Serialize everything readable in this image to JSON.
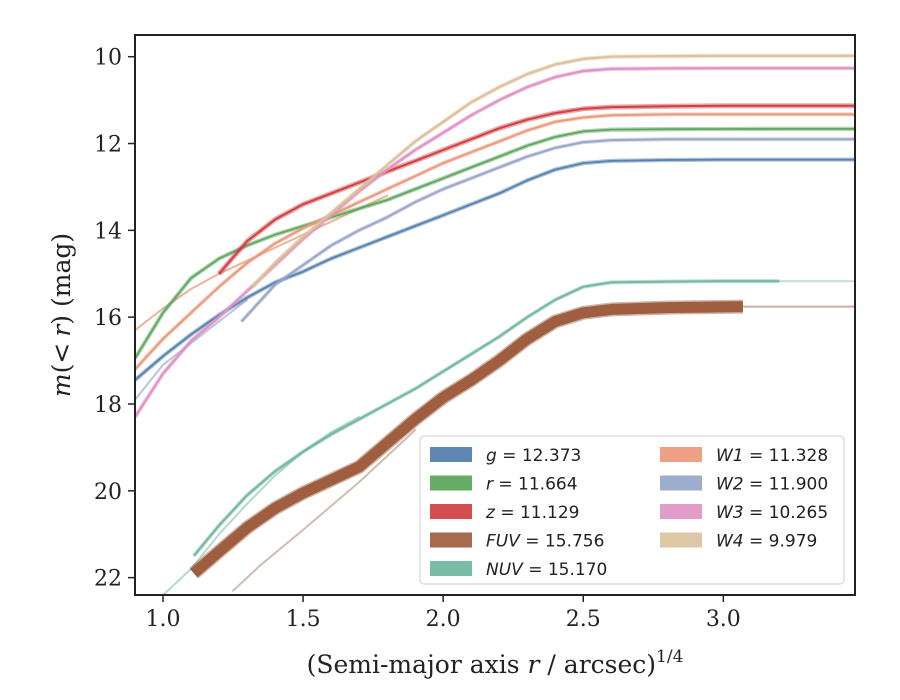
{
  "chart_data": {
    "type": "line",
    "title": "",
    "xlabel": "(Semi-major axis r / arcsec)",
    "xlabel_var": "r",
    "xlabel_exp": "1/4",
    "ylabel": "m(< r) (mag)",
    "ylabel_var_m": "m",
    "ylabel_var_r": "r",
    "xlim": [
      0.9,
      3.47
    ],
    "ylim": [
      22.4,
      9.5
    ],
    "xticks": [
      "1.0",
      "1.5",
      "2.0",
      "2.5",
      "3.0"
    ],
    "xtick_values": [
      1.0,
      1.5,
      2.0,
      2.5,
      3.0
    ],
    "yticks": [
      "10",
      "12",
      "14",
      "16",
      "18",
      "20",
      "22"
    ],
    "ytick_values": [
      10,
      12,
      14,
      16,
      18,
      20,
      22
    ],
    "grid": false,
    "y_inverted": true,
    "legend_position": "lower-right",
    "legend_columns": 2,
    "series": [
      {
        "name": "g",
        "label_value": "12.373",
        "color": "#4c7aab",
        "width": 1.8,
        "band": 2.5,
        "alpha": 0.9,
        "x": [
          0.9,
          1.0,
          1.1,
          1.2,
          1.3,
          1.4,
          1.5,
          1.6,
          1.7,
          1.8,
          1.9,
          2.0,
          2.1,
          2.2,
          2.3,
          2.4,
          2.5,
          2.6,
          2.8,
          3.0,
          3.2,
          3.47
        ],
        "y": [
          17.45,
          16.9,
          16.4,
          15.95,
          15.55,
          15.2,
          14.95,
          14.65,
          14.4,
          14.15,
          13.9,
          13.65,
          13.4,
          13.15,
          12.85,
          12.6,
          12.45,
          12.4,
          12.38,
          12.37,
          12.37,
          12.37
        ]
      },
      {
        "name": "r",
        "label_value": "11.664",
        "color": "#55a357",
        "width": 1.8,
        "band": 2.5,
        "alpha": 0.9,
        "x": [
          0.9,
          1.0,
          1.1,
          1.2,
          1.3,
          1.4,
          1.5,
          1.6,
          1.7,
          1.8,
          1.9,
          2.0,
          2.1,
          2.2,
          2.3,
          2.4,
          2.5,
          2.6,
          2.8,
          3.0,
          3.2,
          3.47
        ],
        "y": [
          16.95,
          15.9,
          15.1,
          14.65,
          14.35,
          14.1,
          13.9,
          13.7,
          13.5,
          13.3,
          13.05,
          12.8,
          12.55,
          12.3,
          12.05,
          11.85,
          11.72,
          11.68,
          11.67,
          11.665,
          11.664,
          11.664
        ]
      },
      {
        "name": "z",
        "label_value": "11.129",
        "color": "#d03a3c",
        "width": 2.0,
        "band": 3,
        "alpha": 0.95,
        "x": [
          1.2,
          1.3,
          1.4,
          1.5,
          1.6,
          1.7,
          1.8,
          1.9,
          2.0,
          2.1,
          2.2,
          2.3,
          2.4,
          2.5,
          2.6,
          2.8,
          3.0,
          3.2,
          3.47
        ],
        "y": [
          15.0,
          14.25,
          13.75,
          13.4,
          13.15,
          12.9,
          12.65,
          12.4,
          12.15,
          11.9,
          11.65,
          11.45,
          11.3,
          11.2,
          11.16,
          11.14,
          11.13,
          11.129,
          11.129
        ]
      },
      {
        "name": "FUV",
        "label_value": "15.756",
        "color": "#9c5a3a",
        "width": 3,
        "band": 11,
        "alpha": 0.95,
        "x": [
          1.11,
          1.2,
          1.3,
          1.4,
          1.5,
          1.6,
          1.7,
          1.8,
          1.9,
          2.0,
          2.1,
          2.2,
          2.3,
          2.4,
          2.5,
          2.6,
          2.8,
          3.07
        ],
        "y": [
          21.9,
          21.4,
          20.85,
          20.4,
          20.05,
          19.75,
          19.45,
          18.9,
          18.35,
          17.85,
          17.45,
          17.0,
          16.5,
          16.1,
          15.9,
          15.82,
          15.78,
          15.756
        ]
      },
      {
        "name": "NUV",
        "label_value": "15.170",
        "color": "#6db59c",
        "width": 2,
        "band": 2,
        "alpha": 0.9,
        "x": [
          1.11,
          1.2,
          1.3,
          1.4,
          1.5,
          1.6,
          1.7,
          1.8,
          1.9,
          2.0,
          2.1,
          2.2,
          2.3,
          2.4,
          2.5,
          2.6,
          2.8,
          3.0,
          3.2
        ],
        "y": [
          21.5,
          20.8,
          20.1,
          19.55,
          19.1,
          18.7,
          18.35,
          18.0,
          17.65,
          17.25,
          16.85,
          16.45,
          16.0,
          15.6,
          15.3,
          15.2,
          15.18,
          15.17,
          15.17
        ]
      },
      {
        "name": "W1",
        "label_value": "11.328",
        "color": "#eb9677",
        "width": 2,
        "band": 2,
        "alpha": 0.9,
        "x": [
          0.9,
          1.0,
          1.1,
          1.2,
          1.3,
          1.4,
          1.5,
          1.6,
          1.7,
          1.8,
          1.9,
          2.0,
          2.1,
          2.2,
          2.3,
          2.4,
          2.5,
          2.6,
          2.8,
          3.0,
          3.2,
          3.47
        ],
        "y": [
          17.2,
          16.5,
          15.9,
          15.3,
          14.75,
          14.3,
          13.95,
          13.65,
          13.35,
          13.05,
          12.75,
          12.45,
          12.2,
          11.95,
          11.7,
          11.5,
          11.4,
          11.35,
          11.33,
          11.328,
          11.328,
          11.328
        ]
      },
      {
        "name": "W2",
        "label_value": "11.900",
        "color": "#94a3c9",
        "width": 2,
        "band": 2,
        "alpha": 0.9,
        "x": [
          1.28,
          1.4,
          1.5,
          1.6,
          1.7,
          1.8,
          1.9,
          2.0,
          2.1,
          2.2,
          2.3,
          2.4,
          2.5,
          2.6,
          2.8,
          3.0,
          3.2,
          3.47
        ],
        "y": [
          16.1,
          15.25,
          14.8,
          14.35,
          14.0,
          13.7,
          13.35,
          13.05,
          12.8,
          12.55,
          12.3,
          12.1,
          11.97,
          11.92,
          11.9,
          11.9,
          11.9,
          11.9
        ]
      },
      {
        "name": "W3",
        "label_value": "10.265",
        "color": "#de91c4",
        "width": 2.2,
        "band": 2,
        "alpha": 0.95,
        "x": [
          0.9,
          1.0,
          1.1,
          1.2,
          1.3,
          1.4,
          1.5,
          1.6,
          1.7,
          1.8,
          1.9,
          2.0,
          2.1,
          2.2,
          2.3,
          2.4,
          2.5,
          2.6,
          2.8,
          3.0,
          3.2,
          3.47
        ],
        "y": [
          18.3,
          17.3,
          16.55,
          16.0,
          15.4,
          14.8,
          14.2,
          13.65,
          13.1,
          12.6,
          12.15,
          11.75,
          11.35,
          11.0,
          10.7,
          10.47,
          10.33,
          10.28,
          10.27,
          10.265,
          10.265,
          10.265
        ]
      },
      {
        "name": "W4",
        "label_value": "9.979",
        "color": "#dcc09a",
        "width": 2.2,
        "band": 2,
        "alpha": 0.95,
        "x": [
          1.32,
          1.4,
          1.5,
          1.6,
          1.7,
          1.8,
          1.9,
          2.0,
          2.1,
          2.2,
          2.3,
          2.4,
          2.5,
          2.6,
          2.8,
          3.0,
          3.2,
          3.47
        ],
        "y": [
          15.3,
          14.75,
          14.15,
          13.6,
          13.05,
          12.5,
          11.95,
          11.5,
          11.05,
          10.7,
          10.4,
          10.18,
          10.05,
          10.0,
          9.985,
          9.98,
          9.979,
          9.979
        ]
      }
    ],
    "faint_series": [
      {
        "color": "#e7a78c",
        "x": [
          0.9,
          1.0,
          1.1,
          1.2,
          1.3,
          1.4,
          1.5,
          1.6,
          1.7,
          1.8
        ],
        "y": [
          16.3,
          15.8,
          15.35,
          15.0,
          14.7,
          14.4,
          14.1,
          13.8,
          13.5,
          13.2
        ]
      },
      {
        "color": "#c9b0a0",
        "x": [
          1.25,
          1.35,
          1.5,
          1.6,
          1.7,
          1.8,
          1.9
        ],
        "y": [
          22.3,
          21.7,
          20.9,
          20.35,
          19.8,
          19.2,
          18.6
        ]
      },
      {
        "color": "#a8d2c2",
        "x": [
          1.0,
          1.1,
          1.2,
          1.3,
          1.4,
          1.5,
          1.6,
          1.7
        ],
        "y": [
          22.4,
          21.8,
          21.0,
          20.3,
          19.65,
          19.1,
          18.65,
          18.3
        ]
      },
      {
        "color": "#a9bcd6",
        "x": [
          0.9,
          1.0,
          1.1,
          1.2,
          1.3
        ],
        "y": [
          17.9,
          17.1,
          16.6,
          16.1,
          15.6
        ]
      },
      {
        "color": "#c4a08a",
        "x": [
          3.07,
          3.2,
          3.47
        ],
        "y": [
          15.756,
          15.756,
          15.756
        ]
      },
      {
        "color": "#bcd9cd",
        "x": [
          3.2,
          3.47
        ],
        "y": [
          15.17,
          15.17
        ]
      }
    ]
  }
}
